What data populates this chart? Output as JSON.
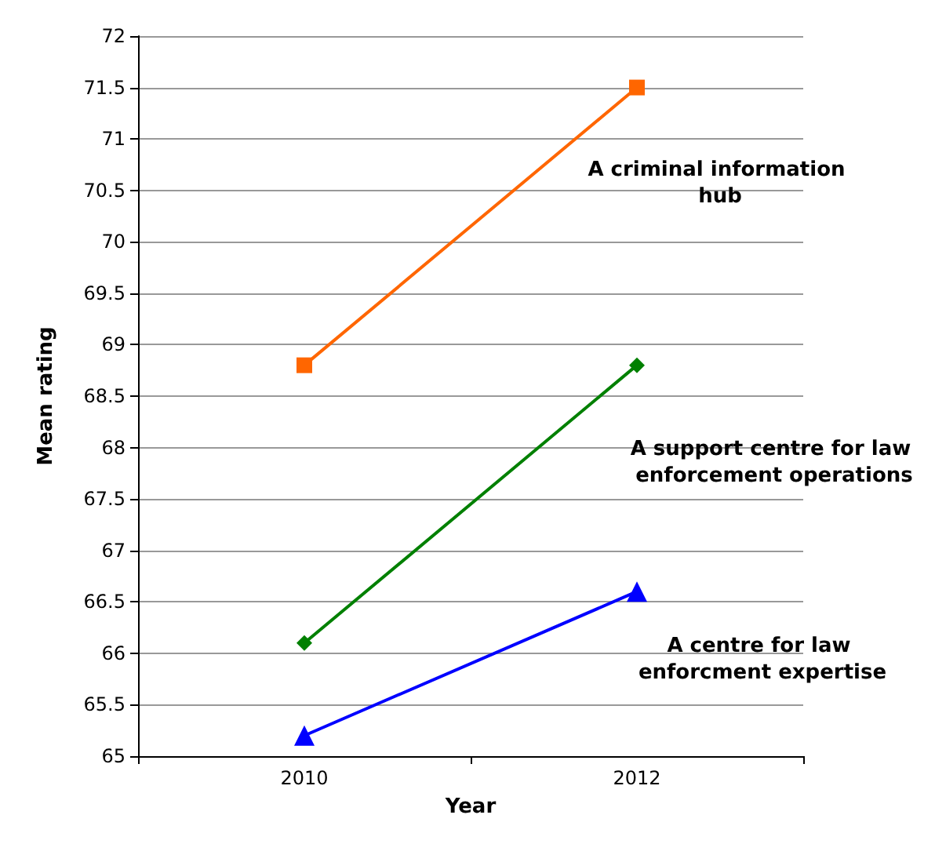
{
  "chart_data": {
    "type": "line",
    "xlabel": "Year",
    "ylabel": "Mean rating",
    "categories": [
      "2010",
      "2012"
    ],
    "ylim": [
      65,
      72
    ],
    "yticks": [
      65,
      65.5,
      66,
      66.5,
      67,
      67.5,
      68,
      68.5,
      69,
      69.5,
      70,
      70.5,
      71,
      71.5,
      72
    ],
    "grid": "y",
    "series": [
      {
        "name": "A criminal information hub",
        "color": "#ff6600",
        "marker": "square",
        "values": [
          68.8,
          71.5
        ]
      },
      {
        "name": "A support centre for law enforcement operations",
        "color": "#008000",
        "marker": "diamond",
        "values": [
          66.1,
          68.8
        ]
      },
      {
        "name": "A centre for law enforcment expertise",
        "color": "#0000ff",
        "marker": "triangle",
        "values": [
          65.2,
          66.6
        ]
      }
    ]
  }
}
